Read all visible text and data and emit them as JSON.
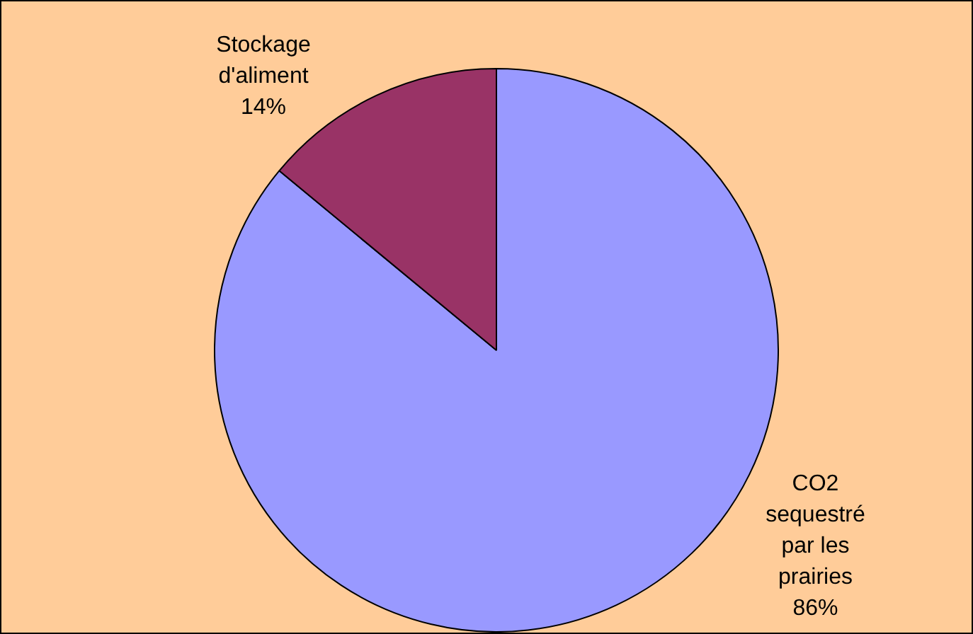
{
  "chart_data": {
    "type": "pie",
    "categories": [
      "CO2 sequestré par les prairies",
      "Stockage d'aliment"
    ],
    "values": [
      86,
      14
    ],
    "colors": [
      "#9999ff",
      "#993366"
    ],
    "value_labels": [
      "86%",
      "14%"
    ],
    "legend": false
  }
}
